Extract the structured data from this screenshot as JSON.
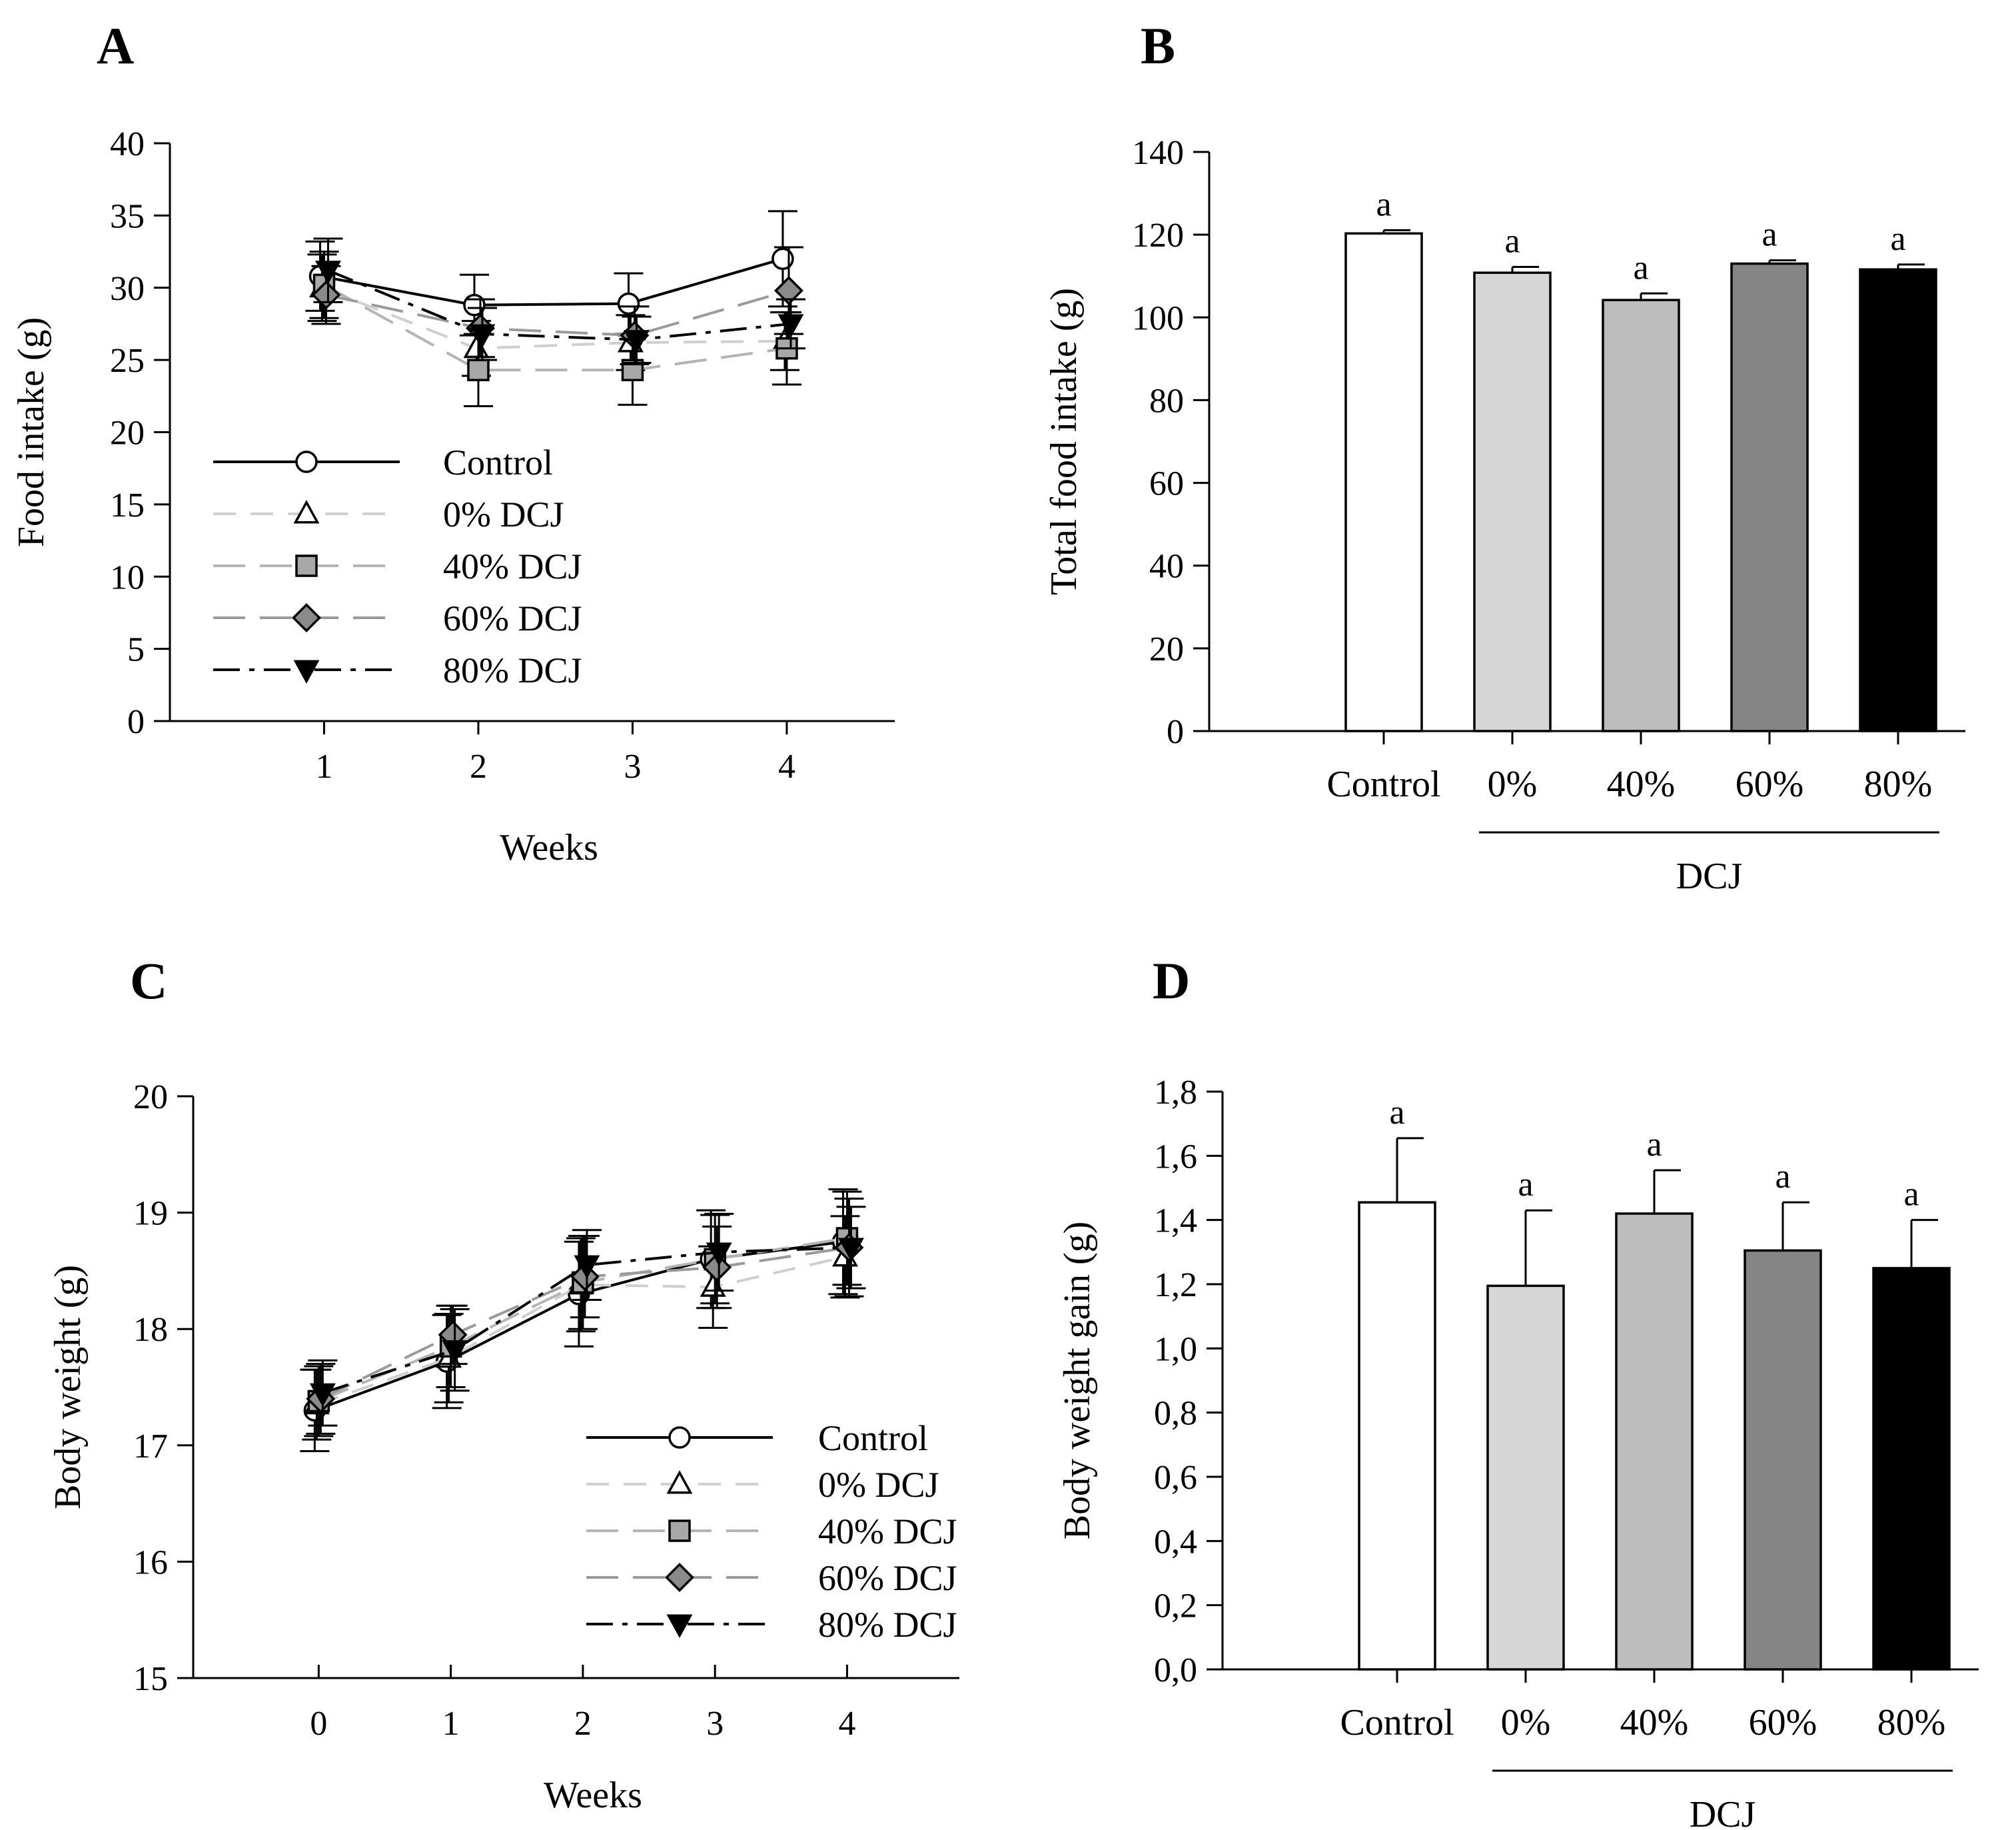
{
  "figure": {
    "title": ""
  },
  "chart_data": [
    {
      "id": "A",
      "panel_label": "A",
      "type": "line",
      "xlabel": "Weeks",
      "ylabel": "Food intake (g)",
      "x": [
        1,
        2,
        3,
        4
      ],
      "xlim": [
        0,
        4.7
      ],
      "ylim": [
        0,
        40
      ],
      "yticks": [
        0,
        5,
        10,
        15,
        20,
        25,
        30,
        35,
        40
      ],
      "xticks": [
        1,
        2,
        3,
        4
      ],
      "legend_position": "lower-left",
      "series": [
        {
          "name": "Control",
          "marker": "circle",
          "color": "#ffffff",
          "line_color": "#000000",
          "dash": "solid",
          "values": [
            30.8,
            28.8,
            28.9,
            32.0
          ],
          "errors": [
            2.4,
            2.1,
            2.1,
            3.3
          ]
        },
        {
          "name": "0% DCJ",
          "marker": "triangle",
          "color": "#ffffff",
          "line_color": "#cfcfcf",
          "dash": "dash",
          "values": [
            30.0,
            25.8,
            26.2,
            26.3
          ],
          "errors": [
            2.3,
            1.9,
            1.9,
            2.0
          ]
        },
        {
          "name": "40% DCJ",
          "marker": "square",
          "color": "#a8a8a8",
          "line_color": "#b4b4b4",
          "dash": "longdash",
          "values": [
            30.2,
            24.3,
            24.3,
            25.8
          ],
          "errors": [
            2.3,
            2.5,
            2.4,
            2.5
          ]
        },
        {
          "name": "60% DCJ",
          "marker": "diamond",
          "color": "#8a8a8a",
          "line_color": "#9a9a9a",
          "dash": "longdash",
          "values": [
            29.5,
            27.2,
            26.7,
            29.8
          ],
          "errors": [
            2.0,
            2.0,
            2.0,
            3.0
          ]
        },
        {
          "name": "80% DCJ",
          "marker": "triangle-down",
          "color": "#000000",
          "line_color": "#000000",
          "dash": "dashdot",
          "values": [
            31.2,
            26.8,
            26.4,
            27.5
          ],
          "errors": [
            2.2,
            1.8,
            1.6,
            1.7
          ]
        }
      ]
    },
    {
      "id": "B",
      "panel_label": "B",
      "type": "bar",
      "xlabel": "DCJ",
      "ylabel": "Total food intake (g)",
      "categories": [
        "Control",
        "0%",
        "40%",
        "60%",
        "80%"
      ],
      "values": [
        120.3,
        110.8,
        104.2,
        113.0,
        111.6
      ],
      "errors": [
        0.8,
        1.4,
        1.6,
        0.8,
        1.2
      ],
      "colors": [
        "#ffffff",
        "#d6d6d6",
        "#bdbdbd",
        "#858585",
        "#000000"
      ],
      "annotations": [
        "a",
        "a",
        "a",
        "a",
        "a"
      ],
      "ylim": [
        0,
        140
      ],
      "yticks": [
        0,
        20,
        40,
        60,
        80,
        100,
        120,
        140
      ],
      "group_label": "DCJ"
    },
    {
      "id": "C",
      "panel_label": "C",
      "type": "line",
      "xlabel": "Weeks",
      "ylabel": "Body weight (g)",
      "x": [
        0,
        1,
        2,
        3,
        4
      ],
      "xlim": [
        -0.95,
        4.85
      ],
      "ylim": [
        15,
        20
      ],
      "yticks": [
        15,
        16,
        17,
        18,
        19,
        20
      ],
      "xticks": [
        0,
        1,
        2,
        3,
        4
      ],
      "legend_position": "lower-right",
      "series": [
        {
          "name": "Control",
          "marker": "circle",
          "color": "#ffffff",
          "line_color": "#000000",
          "dash": "solid",
          "values": [
            17.3,
            17.72,
            18.3,
            18.6,
            18.75
          ],
          "errors": [
            0.35,
            0.4,
            0.45,
            0.42,
            0.45
          ]
        },
        {
          "name": "0% DCJ",
          "marker": "triangle",
          "color": "#ffffff",
          "line_color": "#cfcfcf",
          "dash": "dash",
          "values": [
            17.35,
            17.75,
            18.38,
            18.36,
            18.62
          ],
          "errors": [
            0.3,
            0.38,
            0.4,
            0.35,
            0.35
          ]
        },
        {
          "name": "40% DCJ",
          "marker": "square",
          "color": "#a8a8a8",
          "line_color": "#b4b4b4",
          "dash": "longdash",
          "values": [
            17.38,
            17.85,
            18.4,
            18.6,
            18.78
          ],
          "errors": [
            0.3,
            0.35,
            0.4,
            0.38,
            0.4
          ]
        },
        {
          "name": "60% DCJ",
          "marker": "diamond",
          "color": "#8a8a8a",
          "line_color": "#9a9a9a",
          "dash": "longdash",
          "values": [
            17.4,
            17.95,
            18.45,
            18.53,
            18.7
          ],
          "errors": [
            0.3,
            0.25,
            0.35,
            0.35,
            0.42
          ]
        },
        {
          "name": "80% DCJ",
          "marker": "triangle-down",
          "color": "#000000",
          "line_color": "#000000",
          "dash": "dashdot",
          "values": [
            17.45,
            17.82,
            18.55,
            18.66,
            18.7
          ],
          "errors": [
            0.28,
            0.35,
            0.3,
            0.33,
            0.35
          ]
        }
      ]
    },
    {
      "id": "D",
      "panel_label": "D",
      "type": "bar",
      "xlabel": "DCJ",
      "ylabel": "Body weight gain (g)",
      "categories": [
        "Control",
        "0%",
        "40%",
        "60%",
        "80%"
      ],
      "values": [
        1.455,
        1.195,
        1.42,
        1.305,
        1.25
      ],
      "errors": [
        0.2,
        0.235,
        0.135,
        0.15,
        0.15
      ],
      "colors": [
        "#ffffff",
        "#d6d6d6",
        "#bdbdbd",
        "#858585",
        "#000000"
      ],
      "annotations": [
        "a",
        "a",
        "a",
        "a",
        "a"
      ],
      "ylim": [
        0,
        1.8
      ],
      "yticks": [
        0.0,
        0.2,
        0.4,
        0.6,
        0.8,
        1.0,
        1.2,
        1.4,
        1.6,
        1.8
      ],
      "tick_format": "comma1",
      "group_label": "DCJ"
    }
  ]
}
